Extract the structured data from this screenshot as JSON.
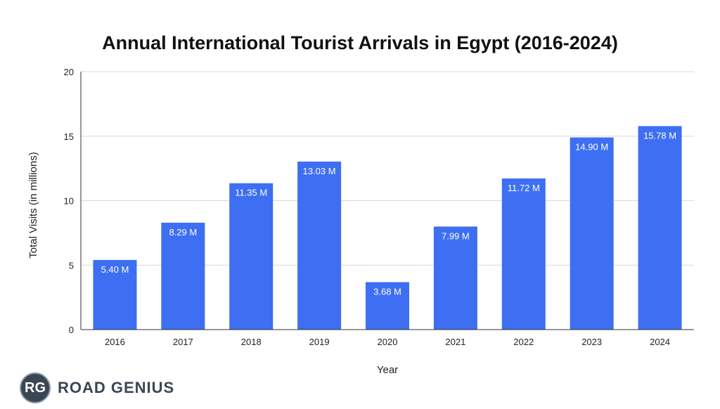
{
  "chart_data": {
    "type": "bar",
    "title": "Annual International Tourist Arrivals in Egypt (2016-2024)",
    "xlabel": "Year",
    "ylabel": "Total Visits (in millions)",
    "categories": [
      "2016",
      "2017",
      "2018",
      "2019",
      "2020",
      "2021",
      "2022",
      "2023",
      "2024"
    ],
    "values": [
      5.4,
      8.29,
      11.35,
      13.03,
      3.68,
      7.99,
      11.72,
      14.9,
      15.78
    ],
    "data_labels": [
      "5.40 M",
      "8.29 M",
      "11.35 M",
      "13.03 M",
      "3.68 M",
      "7.99 M",
      "11.72 M",
      "14.90 M",
      "15.78 M"
    ],
    "ylim": [
      0,
      20
    ],
    "yticks": [
      "0",
      "5",
      "10",
      "15",
      "20"
    ],
    "grid": true,
    "legend": "none",
    "bar_color": "#3e6ff2"
  },
  "brand": {
    "logo_text": "RG",
    "name": "ROAD GENIUS"
  }
}
